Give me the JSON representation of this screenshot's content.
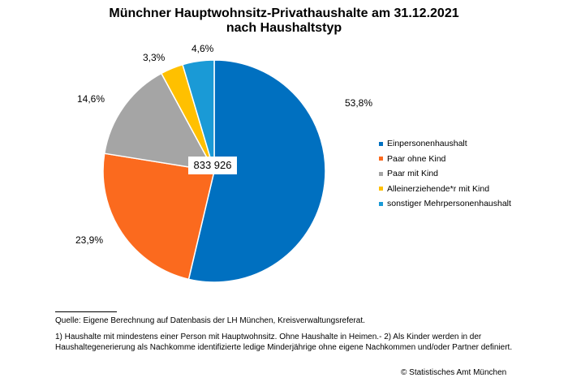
{
  "chart_data": {
    "type": "pie",
    "title": "Münchner Hauptwohnsitz-Privathaushalte am 31.12.2021",
    "subtitle": "nach Haushaltstyp",
    "total_label": "833 926",
    "categories": [
      "Einpersonenhaushalt",
      "Paar ohne Kind",
      "Paar mit Kind",
      "Alleinerziehende*r mit Kind",
      "sonstiger Mehrpersonenhaushalt"
    ],
    "values": [
      53.8,
      23.9,
      14.6,
      3.3,
      4.6
    ],
    "value_labels": [
      "53,8%",
      "23,9%",
      "14,6%",
      "3,3%",
      "4,6%"
    ],
    "colors": [
      "#0070c0",
      "#fb6a1e",
      "#a5a5a5",
      "#ffc000",
      "#1a9ad6"
    ],
    "legend_position": "right"
  },
  "footer": {
    "source": "Quelle: Eigene Berechnung auf Datenbasis der LH München, Kreisverwaltungsreferat.",
    "note": "1) Haushalte mit mindestens einer Person mit Hauptwohnsitz. Ohne Haushalte in Heimen.- 2) Als Kinder werden in der Haushaltegenerierung als Nachkomme identifizierte ledige Minderjährige ohne eigene Nachkommen und/oder Partner definiert.",
    "copyright": "© Statistisches Amt München"
  }
}
